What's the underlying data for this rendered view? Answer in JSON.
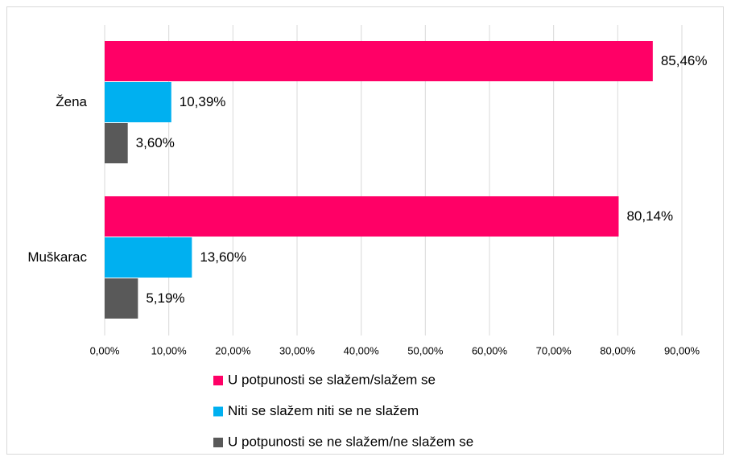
{
  "chart_data": {
    "type": "hbar",
    "categories": [
      "Žena",
      "Muškarac"
    ],
    "series": [
      {
        "name": "U potpunosti se slažem/slažem se",
        "color": "#ff0066",
        "values": [
          85.46,
          80.14
        ],
        "value_labels": [
          "85,46%",
          "80,14%"
        ]
      },
      {
        "name": "Niti se slažem niti se ne slažem",
        "color": "#00b0f0",
        "values": [
          10.39,
          13.6
        ],
        "value_labels": [
          "10,39%",
          "13,60%"
        ]
      },
      {
        "name": "U potpunosti se ne slažem/ne slažem se",
        "color": "#595959",
        "values": [
          3.6,
          5.19
        ],
        "value_labels": [
          "3,60%",
          "5,19%"
        ]
      }
    ],
    "xlim": [
      0,
      90
    ],
    "xticks": [
      {
        "value": 0,
        "label": "0,00%"
      },
      {
        "value": 10,
        "label": "10,00%"
      },
      {
        "value": 20,
        "label": "20,00%"
      },
      {
        "value": 30,
        "label": "30,00%"
      },
      {
        "value": 40,
        "label": "40,00%"
      },
      {
        "value": 50,
        "label": "50,00%"
      },
      {
        "value": 60,
        "label": "60,00%"
      },
      {
        "value": 70,
        "label": "70,00%"
      },
      {
        "value": 80,
        "label": "80,00%"
      },
      {
        "value": 90,
        "label": "90,00%"
      }
    ],
    "grid": true,
    "legend": "bottom"
  }
}
